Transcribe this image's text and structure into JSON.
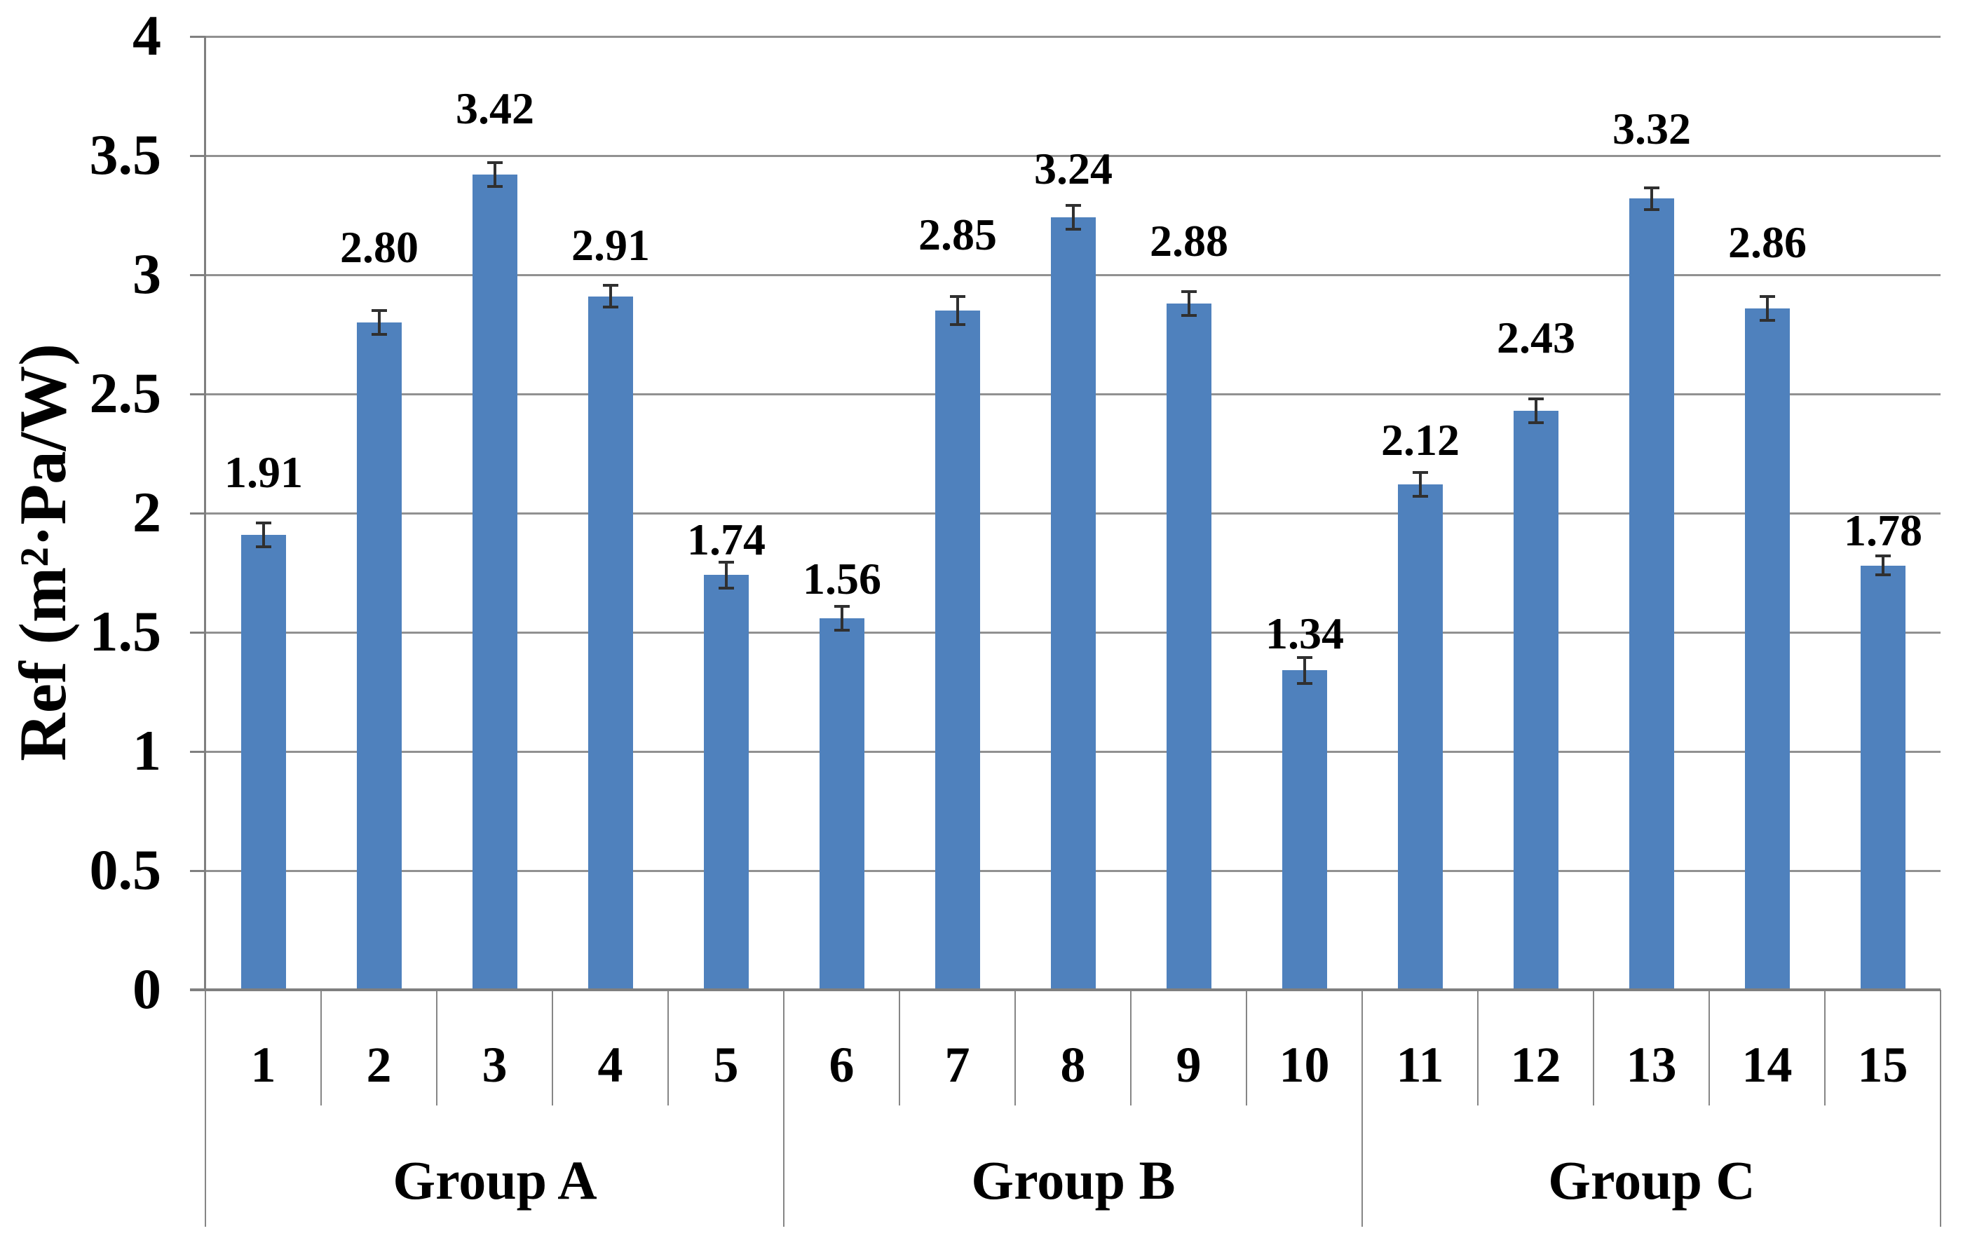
{
  "chart_data": {
    "type": "bar",
    "title": "",
    "xlabel": "",
    "ylabel": "Ref (m²·Pa/W)",
    "ylim": [
      0,
      4
    ],
    "y_tick_step": 0.5,
    "y_ticks": [
      "4",
      "3.5",
      "3",
      "2.5",
      "2",
      "1.5",
      "1",
      "0.5",
      "0"
    ],
    "grid": true,
    "legend": "none",
    "categories": [
      "1",
      "2",
      "3",
      "4",
      "5",
      "6",
      "7",
      "8",
      "9",
      "10",
      "11",
      "12",
      "13",
      "14",
      "15"
    ],
    "values": [
      1.91,
      2.8,
      3.42,
      2.91,
      1.74,
      1.56,
      2.85,
      3.24,
      2.88,
      1.34,
      2.12,
      2.43,
      3.32,
      2.86,
      1.78
    ],
    "data_labels": [
      "1.91",
      "2.80",
      "3.42",
      "2.91",
      "1.74",
      "1.56",
      "2.85",
      "3.24",
      "2.88",
      "1.34",
      "2.12",
      "2.43",
      "3.32",
      "2.86",
      "1.78"
    ],
    "errors": [
      0.05,
      0.05,
      0.05,
      0.045,
      0.055,
      0.05,
      0.06,
      0.05,
      0.05,
      0.055,
      0.05,
      0.05,
      0.045,
      0.05,
      0.04
    ],
    "groups": [
      {
        "label": "Group A",
        "start": 1,
        "end": 5
      },
      {
        "label": "Group B",
        "start": 6,
        "end": 10
      },
      {
        "label": "Group C",
        "start": 11,
        "end": 15
      }
    ],
    "bar_color": "#4f81bd",
    "gridline_color": "#919191",
    "axis_color": "#7f7f7f",
    "error_bar_color": "#303030",
    "text_color": "#000000"
  }
}
